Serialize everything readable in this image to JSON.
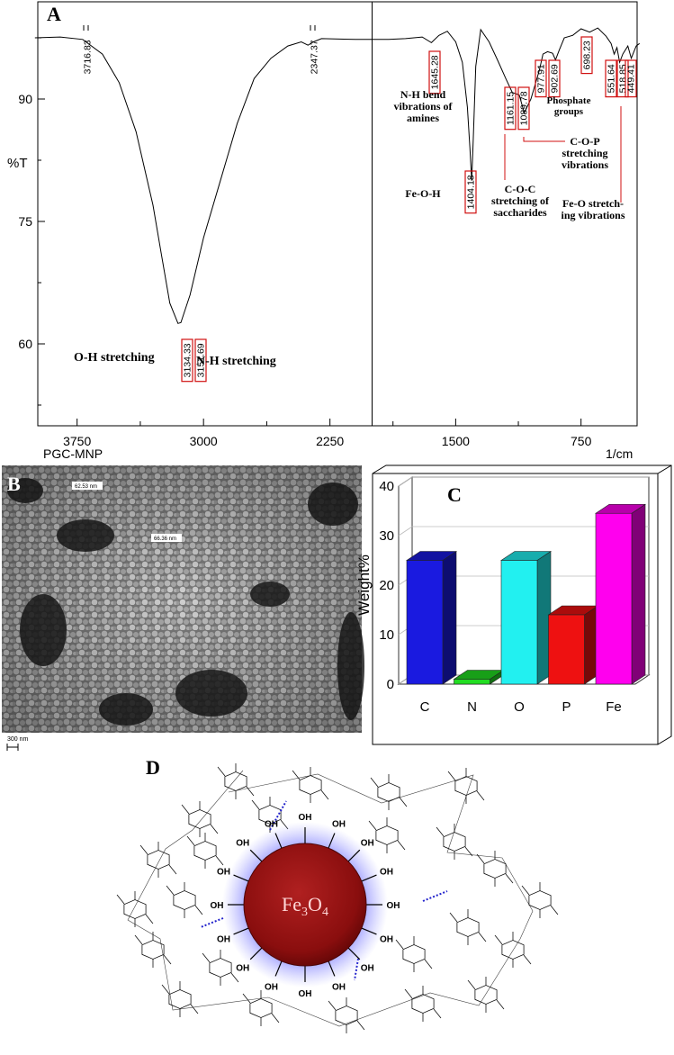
{
  "panels": {
    "A": {
      "letter": "A",
      "sample_label": "PGC-MNP",
      "x_unit": "1/cm",
      "y_label": "%T",
      "x_ticks": [
        "3750",
        "3000",
        "2250",
        "1500",
        "750"
      ],
      "y_ticks": [
        "90",
        "75",
        "60"
      ],
      "peak_labels": [
        "3716.83",
        "2347.37",
        "3151.69",
        "3134.33",
        "1645.28",
        "1404.18",
        "1161.15",
        "1089.78",
        "977.91",
        "902.69",
        "698.23",
        "551.64",
        "518.85",
        "449.41"
      ],
      "annotations": {
        "oh": "O-H stretching",
        "nh": "N-H stretching",
        "nh_bend_1": "N-H bend",
        "nh_bend_2": "vibrations of",
        "nh_bend_3": "amines",
        "feoh": "Fe-O-H",
        "coc_1": "C-O-C",
        "coc_2": "stretching of",
        "coc_3": "saccharides",
        "cop_1": "C-O-P",
        "cop_2": "stretching",
        "cop_3": "vibrations",
        "phos_1": "Phosphate",
        "phos_2": "groups",
        "feo_1": "Fe-O stretch-",
        "feo_2": "ing vibrations"
      },
      "chart_data": {
        "type": "line",
        "xlabel": "1/cm",
        "ylabel": "%T",
        "xlim": [
          4000,
          400
        ],
        "ylim": [
          48,
          101
        ],
        "series": [
          {
            "name": "PGC-MNP",
            "x": [
              4000,
              3850,
              3716.83,
              3600,
              3500,
              3400,
              3300,
              3250,
              3200,
              3151.69,
              3134.33,
              3080,
              3000,
              2900,
              2800,
              2700,
              2600,
              2500,
              2420,
              2380,
              2347.37,
              2300,
              2100,
              1900,
              1800,
              1700,
              1645.28,
              1600,
              1550,
              1500,
              1460,
              1430,
              1415,
              1404.18,
              1395,
              1380,
              1350,
              1300,
              1250,
              1200,
              1161.15,
              1120,
              1089.78,
              1050,
              1000,
              977.91,
              950,
              920,
              902.69,
              880,
              850,
              800,
              750,
              698.23,
              650,
              600,
              570,
              551.64,
              535,
              518.85,
              500,
              470,
              449.41,
              420,
              400
            ],
            "y": [
              97.5,
              97.6,
              97.3,
              95.5,
              92,
              86,
              77,
              71,
              65,
              62.5,
              62.6,
              66,
              73,
              80,
              87,
              92.5,
              95,
              96.5,
              97,
              96.6,
              97,
              97.4,
              97.3,
              97.3,
              97.4,
              97.6,
              96.9,
              97.8,
              98.3,
              97,
              94.5,
              89,
              84,
              80,
              85,
              94,
              98.5,
              97,
              94.8,
              92.5,
              90.8,
              90.5,
              88.3,
              90,
              93.5,
              95.5,
              95.8,
              95.6,
              94.8,
              96,
              97.5,
              97.8,
              98.6,
              98.2,
              98.7,
              97.7,
              96.8,
              95.5,
              96.3,
              94.5,
              95.5,
              96.5,
              95,
              96.5,
              96.8
            ]
          }
        ]
      }
    },
    "B": {
      "letter": "B",
      "measure_1": "62.53 nm",
      "measure_2": "66.36 nm",
      "scalebar": "300 nm"
    },
    "C": {
      "letter": "C",
      "chart_data": {
        "type": "bar",
        "categories": [
          "C",
          "N",
          "O",
          "P",
          "Fe"
        ],
        "values": [
          25,
          1,
          25,
          14,
          34.5
        ],
        "colors": [
          "#1a1ae0",
          "#22dd22",
          "#22f0f0",
          "#ee1111",
          "#ff00ee"
        ],
        "ylabel": "Weight%",
        "ylim": [
          0,
          40
        ],
        "yticks": [
          "0",
          "10",
          "20",
          "30",
          "40"
        ]
      }
    },
    "D": {
      "letter": "D",
      "core_label_main": "Fe",
      "core_sub_1": "3",
      "core_label_o": "O",
      "core_sub_2": "4",
      "hydroxyl": "OH"
    }
  }
}
